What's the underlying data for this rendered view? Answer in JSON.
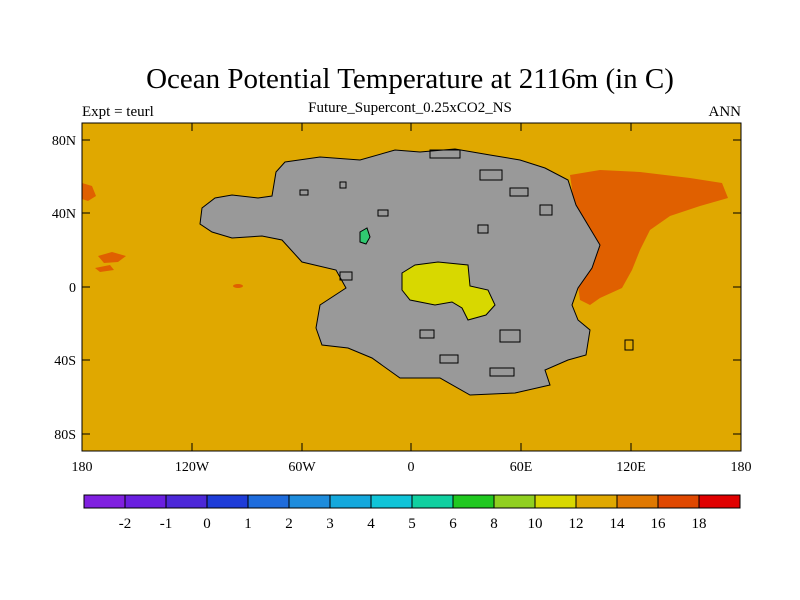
{
  "title": "Ocean Potential Temperature at 2116m (in C)",
  "subtitle": "Future_Supercont_0.25xCO2_NS",
  "left_label": "Expt = teurl",
  "right_label": "ANN",
  "colors": {
    "land": "#999999",
    "ocean_main": "#E0A800",
    "ocean_warm": "#E06000",
    "inland_sea": "#D8D800",
    "lake_green": "#30C870"
  },
  "map": {
    "lon_range": [
      -180,
      180
    ],
    "lat_range": [
      -90,
      90
    ],
    "x_ticks": [
      "180",
      "120W",
      "60W",
      "0",
      "60E",
      "120E",
      "180"
    ],
    "y_ticks": [
      "80N",
      "40N",
      "0",
      "40S",
      "80S"
    ]
  },
  "colorbar": {
    "labels": [
      "-2",
      "-1",
      "0",
      "1",
      "2",
      "3",
      "4",
      "5",
      "6",
      "8",
      "10",
      "12",
      "14",
      "16",
      "18"
    ],
    "colors": [
      "#8020E0",
      "#6A1FE0",
      "#4C28D8",
      "#1E3CD8",
      "#1E6CDC",
      "#1E8CDC",
      "#14A8DC",
      "#10C4D8",
      "#10D0A0",
      "#20C820",
      "#90D020",
      "#D8D800",
      "#E0A800",
      "#E07800",
      "#E04800",
      "#E00000"
    ]
  }
}
